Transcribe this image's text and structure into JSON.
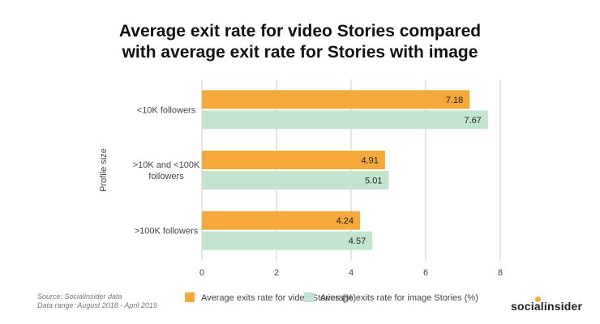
{
  "chart_data": {
    "type": "bar",
    "orientation": "horizontal",
    "title_lines": [
      "Average exit rate for video Stories compared",
      "with average exit rate for Stories with image"
    ],
    "ylabel": "Profile size",
    "xlabel": "",
    "categories": [
      [
        "<10K followers"
      ],
      [
        ">10K and <100K",
        "followers"
      ],
      [
        ">100K followers"
      ]
    ],
    "series": [
      {
        "name": "Average exits rate for video Stories (%)",
        "color": "#f4a93a",
        "values": [
          7.18,
          4.91,
          4.24
        ]
      },
      {
        "name": "Average exits rate for image Stories (%)",
        "color": "#c3e5d0",
        "values": [
          7.67,
          5.01,
          4.57
        ]
      }
    ],
    "xlim": [
      0,
      8
    ],
    "xticks": [
      "0",
      "2",
      "4",
      "6",
      "8"
    ],
    "grid": true,
    "legend_position": "bottom"
  },
  "footer": {
    "source": "Source: Socialinsider data",
    "range": "Data range: August 2018 - April 2019"
  },
  "brand": "socialinsider"
}
